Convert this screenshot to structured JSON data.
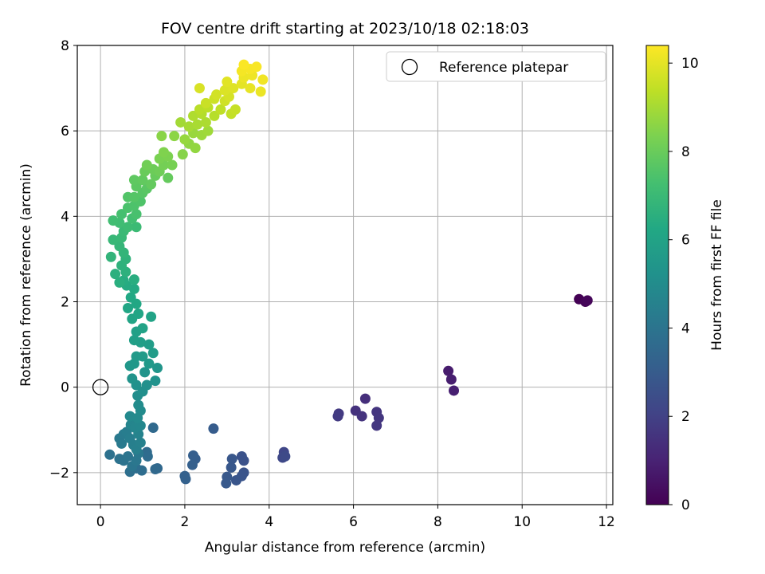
{
  "chart_data": {
    "type": "scatter",
    "title": "FOV centre drift starting at 2023/10/18 02:18:03",
    "xlabel": "Angular distance from reference (arcmin)",
    "ylabel": "Rotation from reference (arcmin)",
    "xlim": [
      -0.55,
      12.15
    ],
    "ylim": [
      -2.75,
      8.0
    ],
    "xticks": [
      0,
      2,
      4,
      6,
      8,
      10,
      12
    ],
    "yticks": [
      -2,
      0,
      2,
      4,
      6,
      8
    ],
    "grid": true,
    "legend": {
      "placement": "top-right",
      "entries": [
        "Reference platepar"
      ]
    },
    "reference_point": {
      "x": 0,
      "y": 0
    },
    "colorbar": {
      "label": "Hours from first FF file",
      "colormap": "viridis",
      "range": [
        0,
        10.4
      ],
      "ticks": [
        0,
        2,
        4,
        6,
        8,
        10
      ]
    },
    "points": [
      {
        "x": 11.35,
        "y": 2.06,
        "c": 0.0
      },
      {
        "x": 11.5,
        "y": 2.0,
        "c": 0.1
      },
      {
        "x": 11.55,
        "y": 2.03,
        "c": 0.15
      },
      {
        "x": 8.25,
        "y": 0.38,
        "c": 0.8
      },
      {
        "x": 8.32,
        "y": 0.18,
        "c": 0.85
      },
      {
        "x": 8.38,
        "y": -0.08,
        "c": 0.9
      },
      {
        "x": 6.28,
        "y": -0.27,
        "c": 1.4
      },
      {
        "x": 6.05,
        "y": -0.55,
        "c": 1.5
      },
      {
        "x": 6.2,
        "y": -0.68,
        "c": 1.55
      },
      {
        "x": 6.55,
        "y": -0.58,
        "c": 1.6
      },
      {
        "x": 6.6,
        "y": -0.72,
        "c": 1.62
      },
      {
        "x": 6.55,
        "y": -0.9,
        "c": 1.65
      },
      {
        "x": 5.65,
        "y": -0.62,
        "c": 1.75
      },
      {
        "x": 5.63,
        "y": -0.68,
        "c": 1.8
      },
      {
        "x": 4.35,
        "y": -1.52,
        "c": 2.2
      },
      {
        "x": 4.32,
        "y": -1.65,
        "c": 2.25
      },
      {
        "x": 4.38,
        "y": -1.62,
        "c": 2.3
      },
      {
        "x": 3.35,
        "y": -1.62,
        "c": 2.6
      },
      {
        "x": 3.4,
        "y": -1.72,
        "c": 2.62
      },
      {
        "x": 3.4,
        "y": -2.0,
        "c": 2.65
      },
      {
        "x": 3.35,
        "y": -2.08,
        "c": 2.7
      },
      {
        "x": 3.22,
        "y": -2.18,
        "c": 2.75
      },
      {
        "x": 3.12,
        "y": -1.68,
        "c": 2.8
      },
      {
        "x": 3.1,
        "y": -1.88,
        "c": 2.82
      },
      {
        "x": 3.0,
        "y": -2.1,
        "c": 2.85
      },
      {
        "x": 2.98,
        "y": -2.25,
        "c": 2.9
      },
      {
        "x": 2.68,
        "y": -0.97,
        "c": 3.0
      },
      {
        "x": 2.25,
        "y": -1.68,
        "c": 3.1
      },
      {
        "x": 2.2,
        "y": -1.6,
        "c": 3.12
      },
      {
        "x": 2.18,
        "y": -1.82,
        "c": 3.15
      },
      {
        "x": 2.0,
        "y": -2.08,
        "c": 3.2
      },
      {
        "x": 2.02,
        "y": -2.15,
        "c": 3.22
      },
      {
        "x": 1.35,
        "y": -1.9,
        "c": 3.5
      },
      {
        "x": 1.3,
        "y": -1.92,
        "c": 3.52
      },
      {
        "x": 1.25,
        "y": -0.95,
        "c": 3.55
      },
      {
        "x": 1.1,
        "y": -1.52,
        "c": 3.6
      },
      {
        "x": 1.12,
        "y": -1.62,
        "c": 3.65
      },
      {
        "x": 0.98,
        "y": -1.95,
        "c": 3.7
      },
      {
        "x": 0.85,
        "y": -1.9,
        "c": 3.75
      },
      {
        "x": 0.7,
        "y": -1.98,
        "c": 3.8
      },
      {
        "x": 0.22,
        "y": -1.58,
        "c": 3.85
      },
      {
        "x": 0.45,
        "y": -1.68,
        "c": 3.9
      },
      {
        "x": 0.55,
        "y": -1.72,
        "c": 3.95
      },
      {
        "x": 0.65,
        "y": -1.62,
        "c": 4.0
      },
      {
        "x": 0.75,
        "y": -1.85,
        "c": 4.05
      },
      {
        "x": 0.85,
        "y": -1.72,
        "c": 4.1
      },
      {
        "x": 0.9,
        "y": -1.55,
        "c": 4.15
      },
      {
        "x": 0.45,
        "y": -1.2,
        "c": 4.2
      },
      {
        "x": 0.5,
        "y": -1.32,
        "c": 4.25
      },
      {
        "x": 0.55,
        "y": -1.1,
        "c": 4.3
      },
      {
        "x": 0.62,
        "y": -1.05,
        "c": 4.35
      },
      {
        "x": 0.7,
        "y": -1.2,
        "c": 4.4
      },
      {
        "x": 0.78,
        "y": -1.35,
        "c": 4.45
      },
      {
        "x": 0.85,
        "y": -1.45,
        "c": 4.5
      },
      {
        "x": 0.95,
        "y": -1.3,
        "c": 4.55
      },
      {
        "x": 0.9,
        "y": -1.1,
        "c": 4.6
      },
      {
        "x": 0.72,
        "y": -0.88,
        "c": 4.7
      },
      {
        "x": 0.82,
        "y": -0.95,
        "c": 4.75
      },
      {
        "x": 0.95,
        "y": -0.9,
        "c": 4.8
      },
      {
        "x": 0.7,
        "y": -0.68,
        "c": 4.85
      },
      {
        "x": 0.88,
        "y": -0.72,
        "c": 4.9
      },
      {
        "x": 0.95,
        "y": -0.55,
        "c": 4.95
      },
      {
        "x": 0.9,
        "y": -0.42,
        "c": 5.0
      },
      {
        "x": 0.88,
        "y": -0.2,
        "c": 5.05
      },
      {
        "x": 1.0,
        "y": -0.1,
        "c": 5.1
      },
      {
        "x": 1.1,
        "y": 0.05,
        "c": 5.15
      },
      {
        "x": 0.85,
        "y": 0.05,
        "c": 5.2
      },
      {
        "x": 1.3,
        "y": 0.15,
        "c": 5.25
      },
      {
        "x": 0.75,
        "y": 0.2,
        "c": 5.3
      },
      {
        "x": 1.05,
        "y": 0.35,
        "c": 5.35
      },
      {
        "x": 1.35,
        "y": 0.45,
        "c": 5.4
      },
      {
        "x": 0.7,
        "y": 0.5,
        "c": 5.45
      },
      {
        "x": 0.8,
        "y": 0.55,
        "c": 5.5
      },
      {
        "x": 1.15,
        "y": 0.55,
        "c": 5.55
      },
      {
        "x": 0.85,
        "y": 0.72,
        "c": 5.6
      },
      {
        "x": 1.0,
        "y": 0.72,
        "c": 5.65
      },
      {
        "x": 1.25,
        "y": 0.8,
        "c": 5.7
      },
      {
        "x": 1.15,
        "y": 1.0,
        "c": 5.75
      },
      {
        "x": 0.95,
        "y": 1.05,
        "c": 5.8
      },
      {
        "x": 0.8,
        "y": 1.1,
        "c": 5.85
      },
      {
        "x": 0.85,
        "y": 1.3,
        "c": 5.9
      },
      {
        "x": 1.0,
        "y": 1.38,
        "c": 5.95
      },
      {
        "x": 1.2,
        "y": 1.65,
        "c": 6.0
      },
      {
        "x": 0.75,
        "y": 1.6,
        "c": 6.05
      },
      {
        "x": 0.9,
        "y": 1.72,
        "c": 6.1
      },
      {
        "x": 0.65,
        "y": 1.85,
        "c": 6.15
      },
      {
        "x": 0.85,
        "y": 1.95,
        "c": 6.2
      },
      {
        "x": 0.72,
        "y": 2.1,
        "c": 6.25
      },
      {
        "x": 0.8,
        "y": 2.3,
        "c": 6.3
      },
      {
        "x": 0.62,
        "y": 2.38,
        "c": 6.35
      },
      {
        "x": 0.55,
        "y": 2.5,
        "c": 6.4
      },
      {
        "x": 0.8,
        "y": 2.52,
        "c": 6.45
      },
      {
        "x": 0.45,
        "y": 2.45,
        "c": 6.5
      },
      {
        "x": 0.35,
        "y": 2.65,
        "c": 6.55
      },
      {
        "x": 0.6,
        "y": 2.7,
        "c": 6.6
      },
      {
        "x": 0.5,
        "y": 2.85,
        "c": 6.65
      },
      {
        "x": 0.6,
        "y": 3.0,
        "c": 6.7
      },
      {
        "x": 0.25,
        "y": 3.05,
        "c": 6.75
      },
      {
        "x": 0.55,
        "y": 3.15,
        "c": 6.8
      },
      {
        "x": 0.45,
        "y": 3.3,
        "c": 6.85
      },
      {
        "x": 0.3,
        "y": 3.45,
        "c": 6.9
      },
      {
        "x": 0.5,
        "y": 3.5,
        "c": 6.95
      },
      {
        "x": 0.55,
        "y": 3.65,
        "c": 7.0
      },
      {
        "x": 0.85,
        "y": 3.75,
        "c": 7.05
      },
      {
        "x": 0.65,
        "y": 3.75,
        "c": 7.1
      },
      {
        "x": 0.45,
        "y": 3.85,
        "c": 7.15
      },
      {
        "x": 0.3,
        "y": 3.9,
        "c": 7.2
      },
      {
        "x": 0.75,
        "y": 3.95,
        "c": 7.25
      },
      {
        "x": 0.5,
        "y": 4.05,
        "c": 7.3
      },
      {
        "x": 0.85,
        "y": 4.05,
        "c": 7.35
      },
      {
        "x": 0.65,
        "y": 4.2,
        "c": 7.4
      },
      {
        "x": 0.8,
        "y": 4.25,
        "c": 7.45
      },
      {
        "x": 0.95,
        "y": 4.35,
        "c": 7.5
      },
      {
        "x": 0.65,
        "y": 4.45,
        "c": 7.55
      },
      {
        "x": 0.8,
        "y": 4.45,
        "c": 7.6
      },
      {
        "x": 1.0,
        "y": 4.55,
        "c": 7.65
      },
      {
        "x": 1.1,
        "y": 4.65,
        "c": 7.7
      },
      {
        "x": 0.85,
        "y": 4.7,
        "c": 7.75
      },
      {
        "x": 0.8,
        "y": 4.85,
        "c": 7.8
      },
      {
        "x": 1.0,
        "y": 4.85,
        "c": 7.85
      },
      {
        "x": 1.2,
        "y": 4.75,
        "c": 7.9
      },
      {
        "x": 1.6,
        "y": 4.9,
        "c": 7.92
      },
      {
        "x": 1.3,
        "y": 4.95,
        "c": 7.95
      },
      {
        "x": 1.05,
        "y": 5.05,
        "c": 8.0
      },
      {
        "x": 1.25,
        "y": 5.1,
        "c": 8.05
      },
      {
        "x": 1.4,
        "y": 5.05,
        "c": 8.1
      },
      {
        "x": 1.1,
        "y": 5.2,
        "c": 8.15
      },
      {
        "x": 1.5,
        "y": 5.2,
        "c": 8.2
      },
      {
        "x": 1.7,
        "y": 5.2,
        "c": 8.25
      },
      {
        "x": 1.4,
        "y": 5.35,
        "c": 8.3
      },
      {
        "x": 1.6,
        "y": 5.4,
        "c": 8.35
      },
      {
        "x": 1.5,
        "y": 5.5,
        "c": 8.4
      },
      {
        "x": 1.95,
        "y": 5.45,
        "c": 8.5
      },
      {
        "x": 1.45,
        "y": 5.88,
        "c": 8.55
      },
      {
        "x": 1.75,
        "y": 5.88,
        "c": 8.6
      },
      {
        "x": 2.1,
        "y": 5.7,
        "c": 8.65
      },
      {
        "x": 2.25,
        "y": 5.6,
        "c": 8.7
      },
      {
        "x": 2.0,
        "y": 5.8,
        "c": 8.75
      },
      {
        "x": 2.2,
        "y": 5.95,
        "c": 8.8
      },
      {
        "x": 2.4,
        "y": 5.9,
        "c": 8.85
      },
      {
        "x": 2.55,
        "y": 6.0,
        "c": 8.9
      },
      {
        "x": 1.9,
        "y": 6.2,
        "c": 8.95
      },
      {
        "x": 2.1,
        "y": 6.1,
        "c": 9.0
      },
      {
        "x": 2.3,
        "y": 6.15,
        "c": 9.05
      },
      {
        "x": 2.5,
        "y": 6.2,
        "c": 9.1
      },
      {
        "x": 2.2,
        "y": 6.35,
        "c": 9.15
      },
      {
        "x": 2.4,
        "y": 6.4,
        "c": 9.2
      },
      {
        "x": 2.7,
        "y": 6.35,
        "c": 9.25
      },
      {
        "x": 2.35,
        "y": 6.5,
        "c": 9.3
      },
      {
        "x": 2.55,
        "y": 6.55,
        "c": 9.35
      },
      {
        "x": 2.85,
        "y": 6.5,
        "c": 9.4
      },
      {
        "x": 3.1,
        "y": 6.4,
        "c": 9.45
      },
      {
        "x": 3.2,
        "y": 6.5,
        "c": 9.5
      },
      {
        "x": 2.5,
        "y": 6.65,
        "c": 9.55
      },
      {
        "x": 2.7,
        "y": 6.75,
        "c": 9.6
      },
      {
        "x": 2.95,
        "y": 6.7,
        "c": 9.65
      },
      {
        "x": 2.75,
        "y": 6.85,
        "c": 9.7
      },
      {
        "x": 3.05,
        "y": 6.8,
        "c": 9.75
      },
      {
        "x": 2.35,
        "y": 7.0,
        "c": 9.8
      },
      {
        "x": 2.95,
        "y": 6.95,
        "c": 9.85
      },
      {
        "x": 3.15,
        "y": 7.0,
        "c": 9.9
      },
      {
        "x": 3.0,
        "y": 7.15,
        "c": 9.95
      },
      {
        "x": 3.35,
        "y": 7.1,
        "c": 10.0
      },
      {
        "x": 3.55,
        "y": 7.0,
        "c": 10.05
      },
      {
        "x": 3.8,
        "y": 6.92,
        "c": 10.1
      },
      {
        "x": 3.4,
        "y": 7.25,
        "c": 10.12
      },
      {
        "x": 3.6,
        "y": 7.3,
        "c": 10.15
      },
      {
        "x": 3.85,
        "y": 7.2,
        "c": 10.2
      },
      {
        "x": 3.35,
        "y": 7.4,
        "c": 10.25
      },
      {
        "x": 3.55,
        "y": 7.45,
        "c": 10.28
      },
      {
        "x": 3.7,
        "y": 7.5,
        "c": 10.32
      },
      {
        "x": 3.4,
        "y": 7.55,
        "c": 10.35
      }
    ]
  }
}
